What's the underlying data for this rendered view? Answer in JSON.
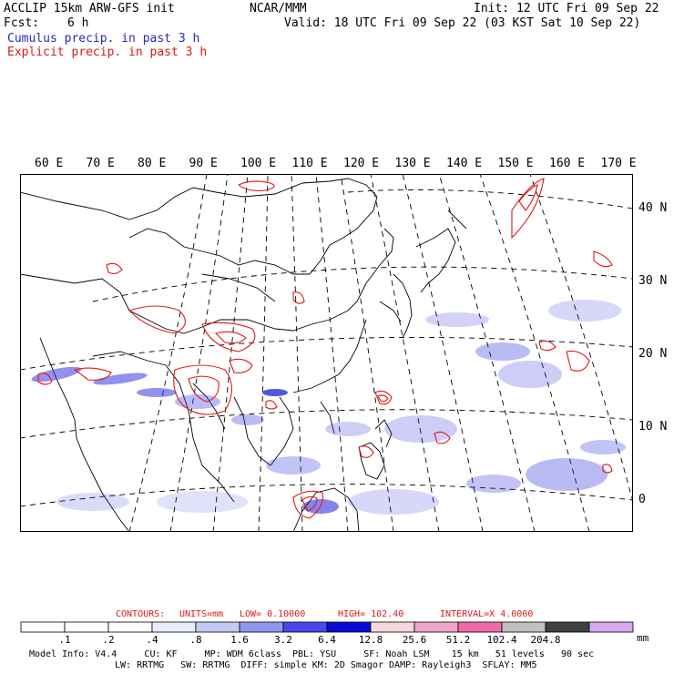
{
  "header": {
    "model_title": "ACCLIP 15km ARW-GFS init",
    "center": "NCAR/MMM",
    "init": "Init: 12 UTC Fri 09 Sep 22",
    "fcst_label": "Fcst:",
    "fcst_value": "6 h",
    "valid": "Valid: 18 UTC Fri 09 Sep 22 (03 KST Sat 10 Sep 22)",
    "field1": "Cumulus precip. in past 3 h",
    "field2": "Explicit precip. in past 3 h",
    "field1_color": "#2a2ab8",
    "field2_color": "#e01818"
  },
  "map": {
    "lon_labels": [
      "60 E",
      "70 E",
      "80 E",
      "90 E",
      "100 E",
      "110 E",
      "120 E",
      "130 E",
      "140 E",
      "150 E",
      "160 E",
      "170 E"
    ],
    "lat_labels": [
      "40 N",
      "30 N",
      "20 N",
      "10 N",
      "0"
    ]
  },
  "contours": {
    "label": "CONTOURS:",
    "units": "UNITS=mm",
    "low": "LOW= 0.10000",
    "high": "HIGH= 102.40",
    "interval": "INTERVAL=X 4.0000"
  },
  "colorbar": {
    "unit": "mm",
    "labels": [
      ".1",
      ".2",
      ".4",
      ".8",
      "1.6",
      "3.2",
      "6.4",
      "12.8",
      "25.6",
      "51.2",
      "102.4",
      "204.8"
    ],
    "colors": [
      "#ffffff",
      "#ffffff",
      "#ffffff",
      "#e8ecfc",
      "#c2cbf5",
      "#8f96f0",
      "#4848ec",
      "#0a0ad8",
      "#f5d8dc",
      "#f0a6c8",
      "#f06aa8",
      "#c0c0c0",
      "#404040",
      "#d8a8f0"
    ]
  },
  "footer": {
    "line1": "Model Info: V4.4     CU: KF     MP: WDM 6class  PBL: YSU     SF: Noah LSM    15 km   51 levels   90 sec",
    "line2": "LW: RRTMG   SW: RRTMG  DIFF: simple KM: 2D Smagor DAMP: Rayleigh3  SFLAY: MM5"
  }
}
